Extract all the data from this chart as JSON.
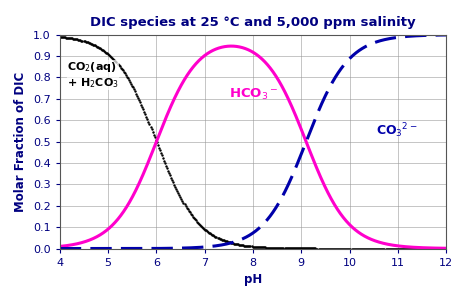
{
  "title": "DIC species at 25 °C and 5,000 ppm salinity",
  "xlabel": "pH",
  "ylabel": "Molar Fraction of DIC",
  "xlim": [
    4,
    12
  ],
  "ylim": [
    0.0,
    1.0
  ],
  "xticks": [
    4,
    5,
    6,
    7,
    8,
    9,
    10,
    11,
    12
  ],
  "yticks": [
    0.0,
    0.1,
    0.2,
    0.3,
    0.4,
    0.5,
    0.6,
    0.7,
    0.8,
    0.9,
    1.0
  ],
  "pKa1": 6.0,
  "pKa2": 9.1,
  "label_co2": "CO$_2$(aq)\n+ H$_2$CO$_3$",
  "label_hco3": "HCO$_3$$^-$",
  "label_co3": "CO$_3$$^{2-}$",
  "color_co2": "#000000",
  "color_hco3": "#ff00cc",
  "color_co3": "#0000aa",
  "title_color": "#000080",
  "axis_label_color": "#000080",
  "tick_color": "#000080",
  "background_color": "#ffffff",
  "grid_color": "#999999",
  "title_fontsize": 9.5,
  "axis_label_fontsize": 8.5,
  "tick_fontsize": 8,
  "annotation_fontsize": 8
}
